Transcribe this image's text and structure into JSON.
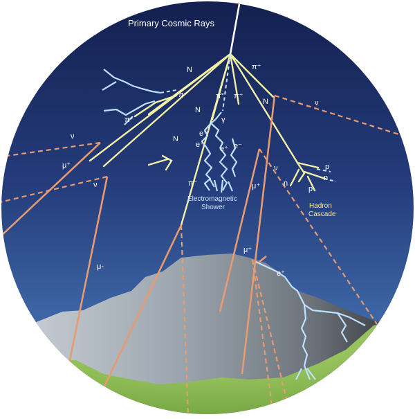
{
  "title": "Primary Cosmic Rays",
  "labels": {
    "n_top": "N",
    "pi_plus_top": "π⁺",
    "pi_minus_left": "π⁻",
    "pi_plus_left": "π⁺",
    "n_left": "N",
    "pi_zero": "π°",
    "pi_plus_mid": "π⁺",
    "n_mid_right": "N",
    "nu_right": "ν",
    "gamma": "γ",
    "e_minus_1": "e⁻",
    "e_plus_1": "e⁺",
    "e_plus_2": "e⁺",
    "e_minus_2": "e⁻",
    "n_mid_left": "N",
    "nu_left_upper": "ν",
    "mu_plus_left": "μ⁺",
    "nu_left_lower": "ν",
    "pi_minus_mid": "π⁻",
    "mu_plus_mid": "μ⁺",
    "nu_mid": "ν",
    "p_upper": "p",
    "n_cascade_right": "n",
    "n_cascade_left": "n",
    "p_lower": "p",
    "mu_minus": "μ-",
    "mu_plus_mountain": "μ⁺",
    "e_plus_mountain": "e⁺"
  },
  "em_shower": [
    "Electromagnetic",
    "Shower"
  ],
  "hadron_cascade": [
    "Hadron",
    "Cascade"
  ],
  "colors": {
    "sky_top": "#13204f",
    "sky_bottom": "#4a7cbd",
    "hadron_track": "#f2f0a6",
    "muon_track": "#e89a70",
    "em_track": "#bfe0ff",
    "ground": "#8fbf55"
  }
}
